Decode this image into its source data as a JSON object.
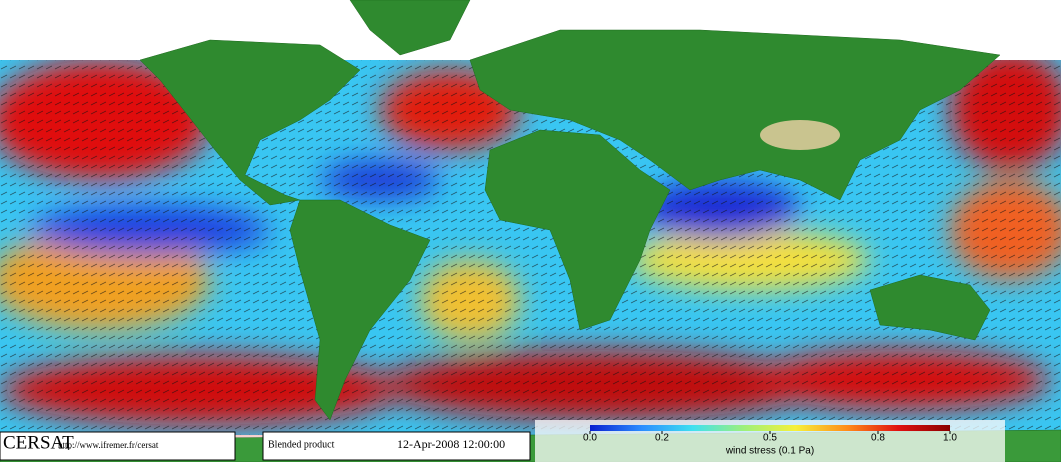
{
  "header": {
    "logo": "CERSAT",
    "url": "http://www.ifremer.fr/cersat",
    "product": "Blended product",
    "date": "12-Apr-2008 12:00:00"
  },
  "colorbar": {
    "label": "wind stress (0.1 Pa)",
    "lim": [
      0,
      1
    ],
    "ticks": [
      {
        "value": 0,
        "label": "0.0"
      },
      0.2,
      0.5,
      0.8,
      {
        "value": 1,
        "label": "1.0"
      }
    ],
    "colors": [
      "#0a1fd0",
      "#2b8cff",
      "#3fe0f0",
      "#9ef07a",
      "#f6f03a",
      "#ff8c1a",
      "#e01010",
      "#8a0000"
    ]
  }
}
